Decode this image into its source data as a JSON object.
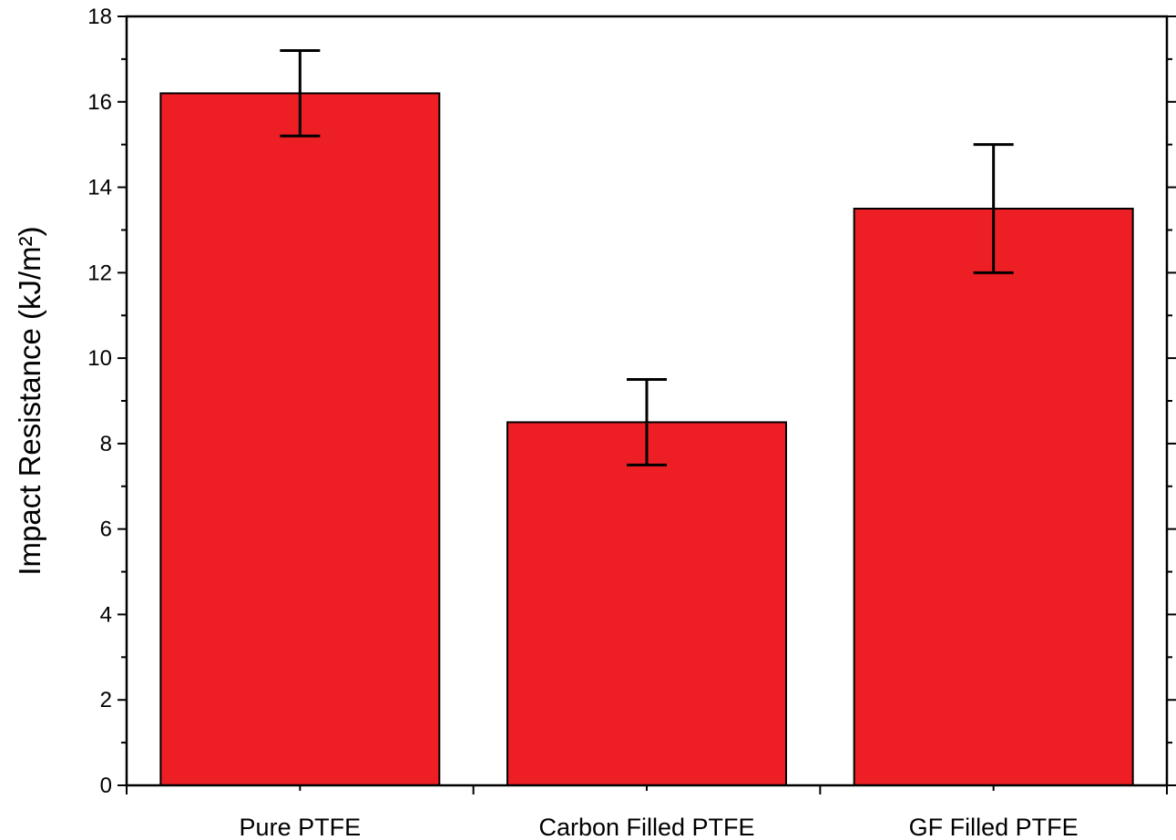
{
  "chart_data": {
    "type": "bar",
    "categories": [
      "Pure PTFE",
      "Carbon Filled PTFE",
      "GF Filled PTFE"
    ],
    "values": [
      16.2,
      8.5,
      13.5
    ],
    "errors": [
      1.0,
      1.0,
      1.5
    ],
    "title": "",
    "xlabel": "",
    "ylabel": "Impact Resistance (kJ/m²)",
    "ylim": [
      0,
      18
    ],
    "yticks": [
      0,
      2,
      4,
      6,
      8,
      10,
      12,
      14,
      16,
      18
    ],
    "ytick_labels": [
      "0",
      "2",
      "4",
      "6",
      "8",
      "10",
      "12",
      "14",
      "16",
      "18"
    ],
    "grid": false,
    "legend": "none",
    "bar_color": "#ed1f24",
    "edge_color": "#000000"
  }
}
